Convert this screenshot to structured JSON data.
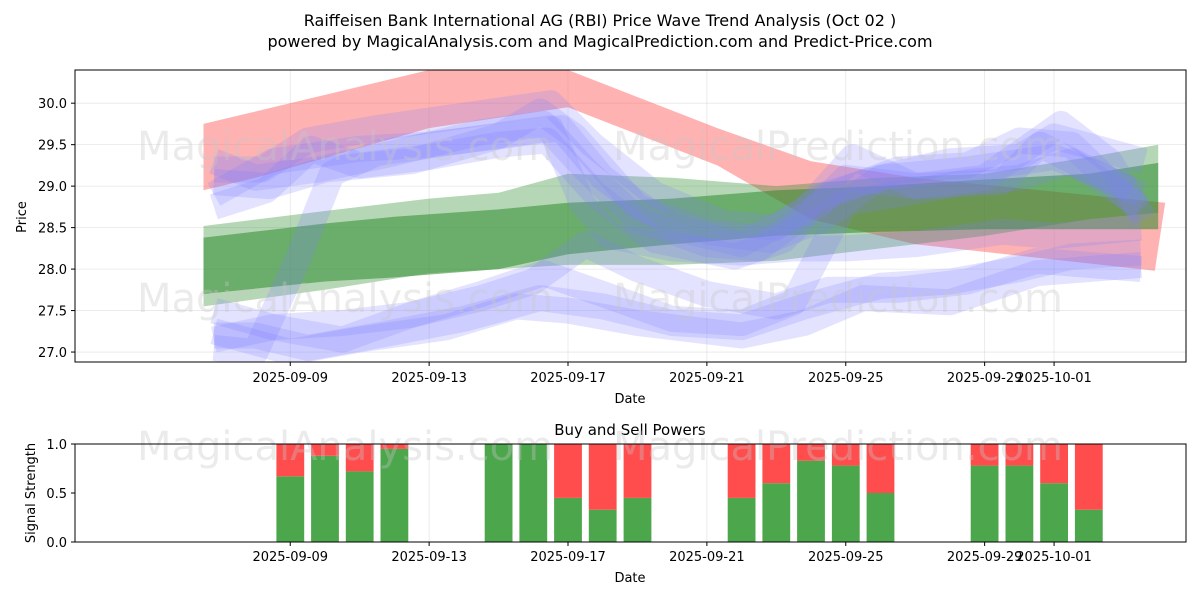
{
  "figure": {
    "title_line1": "Raiffeisen Bank International AG (RBI) Price Wave Trend Analysis (Oct 02 )",
    "title_line2": "powered by MagicalAnalysis.com and MagicalPrediction.com and Predict-Price.com",
    "watermarks": [
      "MagicalAnalysis.com",
      "MagicalPrediction.com"
    ]
  },
  "chart_data": [
    {
      "type": "area",
      "name": "price-wave-chart",
      "xlabel": "Date",
      "ylabel": "Price",
      "ylim": [
        26.88,
        30.4
      ],
      "x_range_days": [
        -3.2,
        28.8
      ],
      "x_origin": "2025-09-06",
      "x_ticks": [
        {
          "day": 3,
          "label": "2025-09-09"
        },
        {
          "day": 7,
          "label": "2025-09-13"
        },
        {
          "day": 11,
          "label": "2025-09-17"
        },
        {
          "day": 15,
          "label": "2025-09-21"
        },
        {
          "day": 19,
          "label": "2025-09-25"
        },
        {
          "day": 23,
          "label": "2025-09-29"
        },
        {
          "day": 25,
          "label": "2025-10-01"
        }
      ],
      "y_ticks": [
        27.0,
        27.5,
        28.0,
        28.5,
        29.0,
        29.5,
        30.0
      ],
      "grid": true,
      "bands": [
        {
          "color": "#ff6666",
          "opacity": 0.5,
          "upper": [
            [
              0.5,
              29.75
            ],
            [
              2,
              29.9
            ],
            [
              7,
              30.4
            ],
            [
              11,
              30.4
            ],
            [
              15.3,
              29.7
            ],
            [
              18,
              29.3
            ],
            [
              21,
              29.1
            ],
            [
              28.2,
              28.8
            ]
          ],
          "lower": [
            [
              0.5,
              28.95
            ],
            [
              2,
              29.1
            ],
            [
              7,
              29.7
            ],
            [
              11,
              29.95
            ],
            [
              15.3,
              29.25
            ],
            [
              18,
              28.6
            ],
            [
              21,
              28.3
            ],
            [
              27.9,
              27.98
            ]
          ]
        },
        {
          "color": "#2e8b2e",
          "opacity": 0.35,
          "upper": [
            [
              0.5,
              28.52
            ],
            [
              4,
              28.7
            ],
            [
              7,
              28.85
            ],
            [
              9,
              28.92
            ],
            [
              11,
              29.15
            ],
            [
              14,
              29.1
            ],
            [
              17,
              29.0
            ],
            [
              20,
              29.1
            ],
            [
              23,
              29.15
            ],
            [
              26,
              29.35
            ],
            [
              28,
              29.5
            ]
          ],
          "lower": [
            [
              0.5,
              27.55
            ],
            [
              4,
              27.75
            ],
            [
              7,
              27.95
            ],
            [
              9,
              28.0
            ],
            [
              11,
              28.05
            ],
            [
              14,
              28.05
            ],
            [
              17,
              28.1
            ],
            [
              20,
              28.25
            ],
            [
              23,
              28.4
            ],
            [
              26,
              28.6
            ],
            [
              28,
              28.68
            ]
          ]
        },
        {
          "color": "#2e8b2e",
          "opacity": 0.55,
          "upper": [
            [
              0.5,
              28.38
            ],
            [
              4,
              28.55
            ],
            [
              6,
              28.63
            ],
            [
              9,
              28.72
            ],
            [
              11,
              28.8
            ],
            [
              14,
              28.85
            ],
            [
              17,
              28.95
            ],
            [
              20,
              29.0
            ],
            [
              23,
              29.08
            ],
            [
              26,
              29.15
            ],
            [
              28,
              29.28
            ]
          ],
          "lower": [
            [
              0.5,
              27.7
            ],
            [
              4,
              27.85
            ],
            [
              6,
              27.9
            ],
            [
              9,
              28.0
            ],
            [
              11,
              28.18
            ],
            [
              14,
              28.3
            ],
            [
              17,
              28.4
            ],
            [
              20,
              28.45
            ],
            [
              23,
              28.48
            ],
            [
              26,
              28.48
            ],
            [
              28,
              28.48
            ]
          ]
        }
      ],
      "waves": [
        {
          "color": "#8080ff",
          "opacity": 0.22,
          "width": 26,
          "points": [
            [
              0.8,
              28.9
            ],
            [
              2.5,
              29.3
            ],
            [
              5,
              29.45
            ],
            [
              7,
              29.5
            ],
            [
              9,
              29.6
            ],
            [
              10.2,
              29.9
            ],
            [
              11.2,
              29.6
            ],
            [
              13,
              28.75
            ],
            [
              15,
              28.45
            ],
            [
              16.8,
              28.35
            ],
            [
              18.3,
              28.6
            ],
            [
              20,
              29.1
            ],
            [
              22,
              29.3
            ],
            [
              24,
              29.35
            ],
            [
              25,
              29.6
            ],
            [
              27.6,
              29.3
            ]
          ]
        },
        {
          "color": "#8080ff",
          "opacity": 0.22,
          "width": 26,
          "points": [
            [
              0.8,
              29.2
            ],
            [
              2.2,
              29.2
            ],
            [
              3.5,
              29.55
            ],
            [
              5.5,
              29.7
            ],
            [
              8,
              29.85
            ],
            [
              10.5,
              30.0
            ],
            [
              11.7,
              29.5
            ],
            [
              13.5,
              28.9
            ],
            [
              15.5,
              28.55
            ],
            [
              17,
              28.5
            ],
            [
              18.4,
              28.9
            ],
            [
              20,
              29.1
            ],
            [
              22.5,
              29.2
            ],
            [
              25,
              29.35
            ],
            [
              26.5,
              29.1
            ],
            [
              27.5,
              28.9
            ]
          ]
        },
        {
          "color": "#8080ff",
          "opacity": 0.22,
          "width": 26,
          "points": [
            [
              0.8,
              29.3
            ],
            [
              2,
              29.1
            ],
            [
              3.8,
              29.2
            ],
            [
              6,
              29.4
            ],
            [
              8.5,
              29.65
            ],
            [
              10.3,
              29.75
            ],
            [
              11.5,
              29.2
            ],
            [
              13,
              28.6
            ],
            [
              15,
              28.3
            ],
            [
              16.5,
              28.25
            ],
            [
              18.6,
              28.9
            ],
            [
              20.5,
              29.2
            ],
            [
              22.5,
              29.25
            ],
            [
              24,
              29.55
            ],
            [
              25.5,
              29.5
            ],
            [
              27.5,
              28.7
            ]
          ]
        },
        {
          "color": "#8080ff",
          "opacity": 0.22,
          "width": 26,
          "points": [
            [
              0.8,
              29.05
            ],
            [
              2.4,
              29.0
            ],
            [
              4,
              29.2
            ],
            [
              6.5,
              29.3
            ],
            [
              9,
              29.6
            ],
            [
              10.8,
              29.7
            ],
            [
              12,
              29.1
            ],
            [
              14,
              28.5
            ],
            [
              16,
              28.3
            ],
            [
              17.8,
              28.7
            ],
            [
              19.2,
              29.35
            ],
            [
              21,
              29.0
            ],
            [
              23,
              29.1
            ],
            [
              25.2,
              29.75
            ],
            [
              26.6,
              29.3
            ],
            [
              27.6,
              28.6
            ]
          ]
        },
        {
          "color": "#8080ff",
          "opacity": 0.22,
          "width": 26,
          "points": [
            [
              0.8,
              28.75
            ],
            [
              2.3,
              28.95
            ],
            [
              3.6,
              29.45
            ],
            [
              5,
              29.25
            ],
            [
              7,
              29.35
            ],
            [
              9,
              29.5
            ],
            [
              10.4,
              29.55
            ],
            [
              11.8,
              28.9
            ],
            [
              13.5,
              28.35
            ],
            [
              15.8,
              28.15
            ],
            [
              17.2,
              28.35
            ],
            [
              19,
              29.1
            ],
            [
              21,
              29.0
            ],
            [
              23.5,
              29.05
            ],
            [
              24.6,
              29.5
            ],
            [
              27.2,
              28.95
            ]
          ]
        },
        {
          "color": "#8080ff",
          "opacity": 0.22,
          "width": 26,
          "points": [
            [
              0.8,
              27.15
            ],
            [
              2.5,
              27.3
            ],
            [
              4.5,
              27.15
            ],
            [
              6.5,
              27.45
            ],
            [
              8.5,
              27.7
            ],
            [
              10.3,
              27.95
            ],
            [
              12,
              27.7
            ],
            [
              14,
              27.4
            ],
            [
              16,
              27.35
            ],
            [
              17.5,
              27.6
            ],
            [
              19,
              28.8
            ],
            [
              20.5,
              28.9
            ],
            [
              22.5,
              29.05
            ],
            [
              24,
              29.1
            ],
            [
              25.5,
              29.3
            ],
            [
              27.5,
              28.75
            ]
          ]
        },
        {
          "color": "#8080ff",
          "opacity": 0.22,
          "width": 26,
          "points": [
            [
              0.8,
              27.2
            ],
            [
              2,
              27.2
            ],
            [
              3.5,
              27.05
            ],
            [
              5.5,
              27.2
            ],
            [
              8,
              27.4
            ],
            [
              10.2,
              27.65
            ],
            [
              12,
              27.55
            ],
            [
              14,
              27.35
            ],
            [
              16,
              27.3
            ],
            [
              17.8,
              27.55
            ],
            [
              20,
              27.8
            ],
            [
              22,
              27.85
            ],
            [
              24,
              28.0
            ],
            [
              25.5,
              28.15
            ],
            [
              27.5,
              28.2
            ]
          ]
        },
        {
          "color": "#8080ff",
          "opacity": 0.22,
          "width": 26,
          "points": [
            [
              0.8,
              27.5
            ],
            [
              2.5,
              27.3
            ],
            [
              4.5,
              27.35
            ],
            [
              6.5,
              27.45
            ],
            [
              8.5,
              27.65
            ],
            [
              10,
              27.85
            ],
            [
              11.5,
              28.3
            ],
            [
              13,
              28.0
            ],
            [
              15,
              27.7
            ],
            [
              17,
              27.55
            ],
            [
              18.5,
              27.75
            ],
            [
              20.5,
              27.75
            ],
            [
              22.5,
              27.85
            ],
            [
              24.5,
              28.1
            ],
            [
              27.5,
              28.0
            ]
          ]
        },
        {
          "color": "#8080ff",
          "opacity": 0.22,
          "width": 26,
          "points": [
            [
              0.8,
              27.05
            ],
            [
              2,
              27.0
            ],
            [
              3.2,
              28.1
            ],
            [
              4.2,
              29.15
            ],
            [
              5.5,
              29.4
            ],
            [
              8,
              29.55
            ],
            [
              10.5,
              29.7
            ],
            [
              11.4,
              28.8
            ],
            [
              12.2,
              28.4
            ],
            [
              14,
              28.25
            ],
            [
              16,
              28.2
            ],
            [
              17.5,
              28.25
            ],
            [
              19,
              28.25
            ],
            [
              21,
              28.3
            ],
            [
              23.5,
              28.45
            ],
            [
              25,
              28.4
            ],
            [
              27.5,
              28.5
            ]
          ]
        },
        {
          "color": "#8080ff",
          "opacity": 0.22,
          "width": 26,
          "points": [
            [
              0.8,
              27.25
            ],
            [
              3,
              27.0
            ],
            [
              5,
              27.15
            ],
            [
              7.5,
              27.3
            ],
            [
              9.5,
              27.55
            ],
            [
              11,
              27.5
            ],
            [
              13,
              27.35
            ],
            [
              16,
              27.2
            ],
            [
              17.8,
              27.35
            ],
            [
              19.5,
              27.65
            ],
            [
              22,
              27.6
            ],
            [
              24.5,
              27.95
            ],
            [
              27.5,
              28.05
            ]
          ]
        }
      ],
      "signals": [
        {
          "day": 3,
          "buy": 0.67
        },
        {
          "day": 4,
          "buy": 0.88
        },
        {
          "day": 5,
          "buy": 0.72
        },
        {
          "day": 6,
          "buy": 0.95
        },
        {
          "day": 9,
          "buy": 1.0
        },
        {
          "day": 10,
          "buy": 1.0
        },
        {
          "day": 11,
          "buy": 0.45
        },
        {
          "day": 12,
          "buy": 0.33
        },
        {
          "day": 13,
          "buy": 0.45
        },
        {
          "day": 16,
          "buy": 0.45
        },
        {
          "day": 17,
          "buy": 0.6
        },
        {
          "day": 18,
          "buy": 0.83
        },
        {
          "day": 19,
          "buy": 0.78
        },
        {
          "day": 20,
          "buy": 0.5
        },
        {
          "day": 23,
          "buy": 0.78
        },
        {
          "day": 24,
          "buy": 0.78
        },
        {
          "day": 25,
          "buy": 0.6
        },
        {
          "day": 26,
          "buy": 0.33
        }
      ]
    },
    {
      "type": "bar",
      "name": "buy-sell-powers-chart",
      "title": "Buy and Sell Powers",
      "xlabel": "Date",
      "ylabel": "Signal Strength",
      "ylim": [
        0.0,
        1.0
      ],
      "y_ticks": [
        0.0,
        0.5,
        1.0
      ],
      "series": [
        {
          "name": "Buy",
          "color": "#4ca64c"
        },
        {
          "name": "Sell",
          "color": "#ff4d4d"
        }
      ]
    }
  ]
}
